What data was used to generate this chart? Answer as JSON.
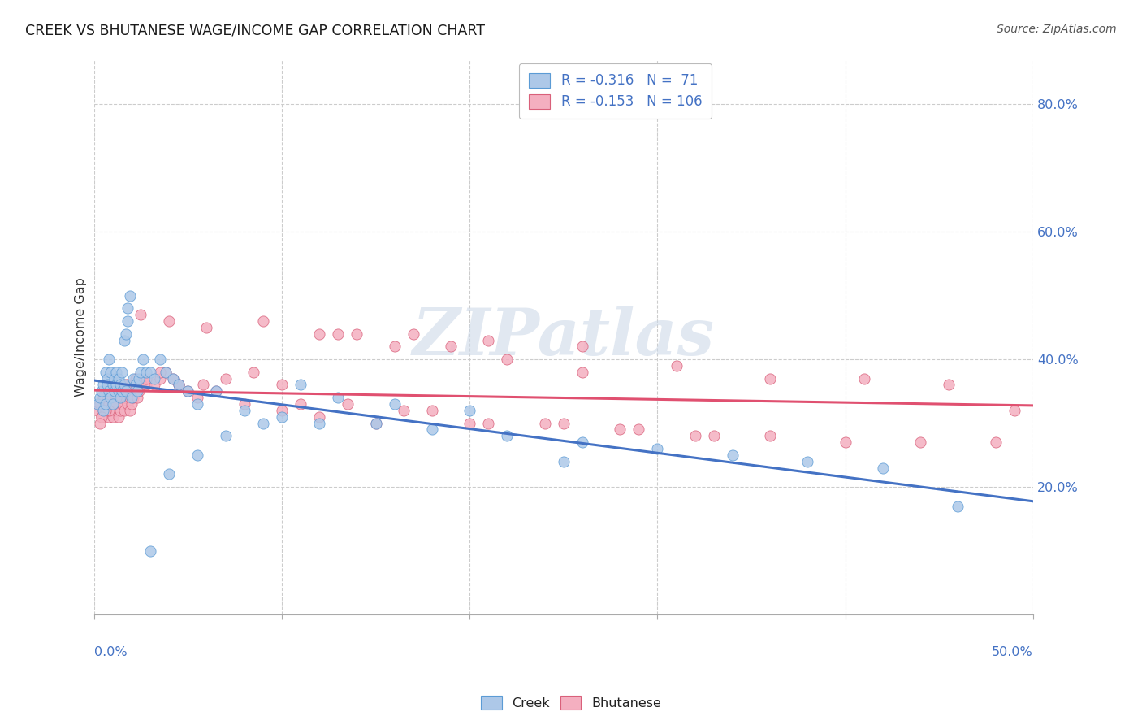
{
  "title": "CREEK VS BHUTANESE WAGE/INCOME GAP CORRELATION CHART",
  "source": "Source: ZipAtlas.com",
  "ylabel": "Wage/Income Gap",
  "ytick_vals": [
    0.2,
    0.4,
    0.6,
    0.8
  ],
  "ytick_labels": [
    "20.0%",
    "40.0%",
    "60.0%",
    "80.0%"
  ],
  "xlim": [
    0.0,
    0.5
  ],
  "ylim": [
    0.0,
    0.87
  ],
  "xtick_positions": [
    0.0,
    0.1,
    0.2,
    0.3,
    0.4,
    0.5
  ],
  "legend_creek_label": "R = -0.316   N =  71",
  "legend_bhut_label": "R = -0.153   N = 106",
  "creek_fill": "#adc8e8",
  "creek_edge": "#5b9bd5",
  "bhut_fill": "#f4afc0",
  "bhut_edge": "#d9607a",
  "creek_line_color": "#4472c4",
  "bhut_line_color": "#e05070",
  "watermark_color": "#cdd9e8",
  "background": "#ffffff",
  "grid_color": "#cccccc",
  "title_color": "#1a1a1a",
  "source_color": "#555555",
  "axis_label_color": "#333333",
  "tick_color": "#4472c4",
  "creek_x": [
    0.002,
    0.003,
    0.004,
    0.005,
    0.005,
    0.006,
    0.006,
    0.007,
    0.007,
    0.008,
    0.008,
    0.009,
    0.009,
    0.01,
    0.01,
    0.011,
    0.011,
    0.012,
    0.012,
    0.013,
    0.013,
    0.014,
    0.014,
    0.015,
    0.015,
    0.016,
    0.016,
    0.017,
    0.017,
    0.018,
    0.018,
    0.019,
    0.02,
    0.021,
    0.022,
    0.023,
    0.024,
    0.025,
    0.026,
    0.028,
    0.03,
    0.032,
    0.035,
    0.038,
    0.042,
    0.045,
    0.05,
    0.055,
    0.065,
    0.08,
    0.1,
    0.12,
    0.15,
    0.18,
    0.22,
    0.26,
    0.3,
    0.34,
    0.38,
    0.42,
    0.46,
    0.25,
    0.2,
    0.16,
    0.13,
    0.11,
    0.09,
    0.07,
    0.055,
    0.04,
    0.03
  ],
  "creek_y": [
    0.33,
    0.34,
    0.35,
    0.36,
    0.32,
    0.38,
    0.33,
    0.37,
    0.36,
    0.35,
    0.4,
    0.38,
    0.34,
    0.36,
    0.33,
    0.37,
    0.35,
    0.38,
    0.36,
    0.35,
    0.37,
    0.36,
    0.34,
    0.38,
    0.35,
    0.36,
    0.43,
    0.44,
    0.35,
    0.46,
    0.48,
    0.5,
    0.34,
    0.37,
    0.36,
    0.35,
    0.37,
    0.38,
    0.4,
    0.38,
    0.38,
    0.37,
    0.4,
    0.38,
    0.37,
    0.36,
    0.35,
    0.33,
    0.35,
    0.32,
    0.31,
    0.3,
    0.3,
    0.29,
    0.28,
    0.27,
    0.26,
    0.25,
    0.24,
    0.23,
    0.17,
    0.24,
    0.32,
    0.33,
    0.34,
    0.36,
    0.3,
    0.28,
    0.25,
    0.22,
    0.1
  ],
  "bhut_x": [
    0.002,
    0.003,
    0.004,
    0.005,
    0.005,
    0.006,
    0.006,
    0.007,
    0.007,
    0.008,
    0.008,
    0.009,
    0.009,
    0.01,
    0.01,
    0.011,
    0.011,
    0.012,
    0.012,
    0.013,
    0.013,
    0.014,
    0.014,
    0.015,
    0.015,
    0.016,
    0.016,
    0.017,
    0.017,
    0.018,
    0.018,
    0.019,
    0.019,
    0.02,
    0.02,
    0.021,
    0.022,
    0.023,
    0.024,
    0.025,
    0.026,
    0.028,
    0.03,
    0.032,
    0.035,
    0.038,
    0.042,
    0.045,
    0.05,
    0.055,
    0.065,
    0.08,
    0.1,
    0.12,
    0.15,
    0.18,
    0.21,
    0.24,
    0.28,
    0.32,
    0.36,
    0.4,
    0.44,
    0.48,
    0.26,
    0.22,
    0.19,
    0.16,
    0.14,
    0.12,
    0.1,
    0.085,
    0.07,
    0.058,
    0.045,
    0.035,
    0.028,
    0.022,
    0.018,
    0.015,
    0.012,
    0.01,
    0.008,
    0.006,
    0.004,
    0.003,
    0.025,
    0.04,
    0.06,
    0.09,
    0.13,
    0.17,
    0.21,
    0.26,
    0.31,
    0.36,
    0.41,
    0.455,
    0.49,
    0.33,
    0.29,
    0.25,
    0.2,
    0.165,
    0.135,
    0.11
  ],
  "bhut_y": [
    0.32,
    0.33,
    0.31,
    0.34,
    0.32,
    0.35,
    0.33,
    0.34,
    0.32,
    0.33,
    0.31,
    0.34,
    0.32,
    0.33,
    0.31,
    0.35,
    0.33,
    0.34,
    0.32,
    0.33,
    0.31,
    0.34,
    0.32,
    0.35,
    0.33,
    0.34,
    0.32,
    0.36,
    0.34,
    0.35,
    0.33,
    0.34,
    0.32,
    0.35,
    0.33,
    0.34,
    0.35,
    0.34,
    0.35,
    0.36,
    0.37,
    0.36,
    0.37,
    0.36,
    0.37,
    0.38,
    0.37,
    0.36,
    0.35,
    0.34,
    0.35,
    0.33,
    0.32,
    0.31,
    0.3,
    0.32,
    0.3,
    0.3,
    0.29,
    0.28,
    0.28,
    0.27,
    0.27,
    0.27,
    0.38,
    0.4,
    0.42,
    0.42,
    0.44,
    0.44,
    0.36,
    0.38,
    0.37,
    0.36,
    0.36,
    0.38,
    0.37,
    0.37,
    0.36,
    0.35,
    0.34,
    0.33,
    0.32,
    0.32,
    0.31,
    0.3,
    0.47,
    0.46,
    0.45,
    0.46,
    0.44,
    0.44,
    0.43,
    0.42,
    0.39,
    0.37,
    0.37,
    0.36,
    0.32,
    0.28,
    0.29,
    0.3,
    0.3,
    0.32,
    0.33,
    0.33
  ]
}
